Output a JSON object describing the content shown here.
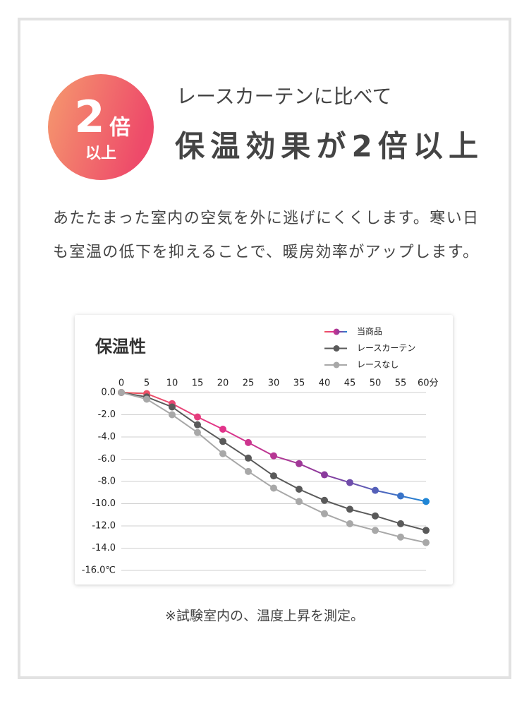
{
  "badge": {
    "number": "2",
    "unit": "倍",
    "suffix": "以上"
  },
  "header": {
    "subtitle": "レースカーテンに比べて",
    "title": "保温効果が2倍以上"
  },
  "body": {
    "lines": [
      "あたたまった室内の空気を外に逃げにくくします。寒い日",
      "も室温の低下を抑えることで、暖房効率がアップします。"
    ]
  },
  "note": "※試験室内の、温度上昇を測定。",
  "chart_data": {
    "type": "line",
    "title": "保温性",
    "x": [
      0,
      5,
      10,
      15,
      20,
      25,
      30,
      35,
      40,
      45,
      50,
      55,
      60
    ],
    "xlim": [
      0,
      60
    ],
    "xticks": [
      0,
      5,
      10,
      15,
      20,
      25,
      30,
      35,
      40,
      45,
      50,
      55,
      {
        "value": 60,
        "label": "60分"
      }
    ],
    "ylim": [
      -16,
      0
    ],
    "yticks": [
      {
        "value": 0,
        "label": "0.0"
      },
      {
        "value": -2,
        "label": "-2.0"
      },
      {
        "value": -4,
        "label": "-4.0"
      },
      {
        "value": -6,
        "label": "-6.0"
      },
      {
        "value": -8,
        "label": "-8.0"
      },
      {
        "value": -10,
        "label": "-10.0"
      },
      {
        "value": -12,
        "label": "-12.0"
      },
      {
        "value": -14,
        "label": "-14.0"
      },
      {
        "value": -16,
        "label": "-16.0℃"
      }
    ],
    "grid": true,
    "legend": "top-right",
    "series": [
      {
        "name": "当商品",
        "color": "#c8368f",
        "gradient": [
          "#f05a5a",
          "#e2338a",
          "#8a3a9c",
          "#1f86d6"
        ],
        "values": [
          0,
          -0.1,
          -1.0,
          -2.2,
          -3.3,
          -4.5,
          -5.7,
          -6.4,
          -7.4,
          -8.1,
          -8.8,
          -9.3,
          -9.8
        ]
      },
      {
        "name": "レースカーテン",
        "color": "#5a5a5a",
        "values": [
          0,
          -0.4,
          -1.3,
          -2.9,
          -4.4,
          -5.9,
          -7.5,
          -8.7,
          -9.7,
          -10.5,
          -11.1,
          -11.8,
          -12.4
        ]
      },
      {
        "name": "レースなし",
        "color": "#a8a8a8",
        "values": [
          0,
          -0.6,
          -2.0,
          -3.6,
          -5.5,
          -7.1,
          -8.6,
          -9.8,
          -10.9,
          -11.8,
          -12.4,
          -13.0,
          -13.5
        ]
      }
    ]
  }
}
